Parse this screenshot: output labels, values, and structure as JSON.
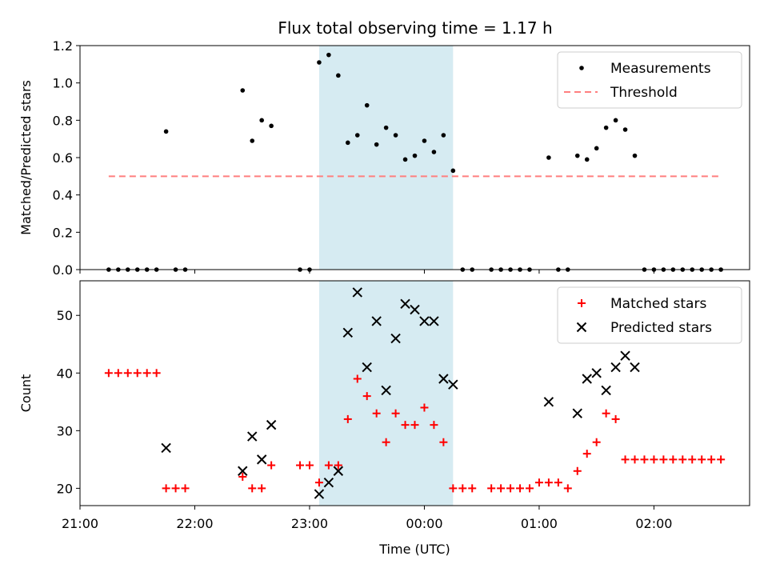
{
  "chart_data": {
    "title": "Flux total observing time = 1.17 h",
    "shaded_span": {
      "start": "23:05",
      "end": "00:15"
    },
    "panels": [
      {
        "type": "scatter",
        "ylabel": "Matched/Predicted stars",
        "ylim": [
          0,
          1.2
        ],
        "yticks": [
          "0.0",
          "0.2",
          "0.4",
          "0.6",
          "0.8",
          "1.0",
          "1.2"
        ],
        "xlim": [
          "21:00",
          "02:50"
        ],
        "legend_position": "top-right",
        "threshold": {
          "name": "Threshold",
          "value": 0.5,
          "x_start": "21:15",
          "x_end": "02:35",
          "color": "#ff7f7f"
        },
        "series": [
          {
            "name": "Measurements",
            "color": "#000000",
            "points": [
              [
                "21:15",
                0
              ],
              [
                "21:20",
                0
              ],
              [
                "21:25",
                0
              ],
              [
                "21:30",
                0
              ],
              [
                "21:35",
                0
              ],
              [
                "21:40",
                0
              ],
              [
                "21:45",
                0.74
              ],
              [
                "21:50",
                0
              ],
              [
                "21:55",
                0
              ],
              [
                "22:25",
                0.96
              ],
              [
                "22:30",
                0.69
              ],
              [
                "22:35",
                0.8
              ],
              [
                "22:40",
                0.77
              ],
              [
                "22:55",
                0
              ],
              [
                "23:00",
                0
              ],
              [
                "23:05",
                1.11
              ],
              [
                "23:10",
                1.15
              ],
              [
                "23:15",
                1.04
              ],
              [
                "23:20",
                0.68
              ],
              [
                "23:25",
                0.72
              ],
              [
                "23:30",
                0.88
              ],
              [
                "23:35",
                0.67
              ],
              [
                "23:40",
                0.76
              ],
              [
                "23:45",
                0.72
              ],
              [
                "23:50",
                0.59
              ],
              [
                "23:55",
                0.61
              ],
              [
                "00:00",
                0.69
              ],
              [
                "00:05",
                0.63
              ],
              [
                "00:10",
                0.72
              ],
              [
                "00:15",
                0.53
              ],
              [
                "00:20",
                0
              ],
              [
                "00:25",
                0
              ],
              [
                "00:35",
                0
              ],
              [
                "00:40",
                0
              ],
              [
                "00:45",
                0
              ],
              [
                "00:50",
                0
              ],
              [
                "00:55",
                0
              ],
              [
                "01:05",
                0.6
              ],
              [
                "01:10",
                0
              ],
              [
                "01:15",
                0
              ],
              [
                "01:20",
                0.61
              ],
              [
                "01:25",
                0.59
              ],
              [
                "01:30",
                0.65
              ],
              [
                "01:35",
                0.76
              ],
              [
                "01:40",
                0.8
              ],
              [
                "01:45",
                0.75
              ],
              [
                "01:50",
                0.61
              ],
              [
                "01:55",
                0
              ],
              [
                "02:00",
                0
              ],
              [
                "02:05",
                0
              ],
              [
                "02:10",
                0
              ],
              [
                "02:15",
                0
              ],
              [
                "02:20",
                0
              ],
              [
                "02:25",
                0
              ],
              [
                "02:30",
                0
              ],
              [
                "02:35",
                0
              ]
            ]
          }
        ]
      },
      {
        "type": "scatter",
        "xlabel": "Time (UTC)",
        "ylabel": "Count",
        "ylim": [
          17,
          56
        ],
        "yticks": [
          "20",
          "30",
          "40",
          "50"
        ],
        "xlim": [
          "21:00",
          "02:50"
        ],
        "xticks": [
          "21:00",
          "22:00",
          "23:00",
          "00:00",
          "01:00",
          "02:00"
        ],
        "legend_position": "top-right",
        "series": [
          {
            "name": "Matched stars",
            "marker": "plus",
            "color": "#ff0000",
            "points": [
              [
                "21:15",
                40
              ],
              [
                "21:20",
                40
              ],
              [
                "21:25",
                40
              ],
              [
                "21:30",
                40
              ],
              [
                "21:35",
                40
              ],
              [
                "21:40",
                40
              ],
              [
                "21:45",
                20
              ],
              [
                "21:50",
                20
              ],
              [
                "21:55",
                20
              ],
              [
                "22:25",
                22
              ],
              [
                "22:30",
                20
              ],
              [
                "22:35",
                20
              ],
              [
                "22:40",
                24
              ],
              [
                "22:55",
                24
              ],
              [
                "23:00",
                24
              ],
              [
                "23:05",
                21
              ],
              [
                "23:10",
                24
              ],
              [
                "23:15",
                24
              ],
              [
                "23:20",
                32
              ],
              [
                "23:25",
                39
              ],
              [
                "23:30",
                36
              ],
              [
                "23:35",
                33
              ],
              [
                "23:40",
                28
              ],
              [
                "23:45",
                33
              ],
              [
                "23:50",
                31
              ],
              [
                "23:55",
                31
              ],
              [
                "00:00",
                34
              ],
              [
                "00:05",
                31
              ],
              [
                "00:10",
                28
              ],
              [
                "00:15",
                20
              ],
              [
                "00:20",
                20
              ],
              [
                "00:25",
                20
              ],
              [
                "00:35",
                20
              ],
              [
                "00:40",
                20
              ],
              [
                "00:45",
                20
              ],
              [
                "00:50",
                20
              ],
              [
                "00:55",
                20
              ],
              [
                "01:00",
                21
              ],
              [
                "01:05",
                21
              ],
              [
                "01:10",
                21
              ],
              [
                "01:15",
                20
              ],
              [
                "01:20",
                23
              ],
              [
                "01:25",
                26
              ],
              [
                "01:30",
                28
              ],
              [
                "01:35",
                33
              ],
              [
                "01:40",
                32
              ],
              [
                "01:45",
                25
              ],
              [
                "01:50",
                25
              ],
              [
                "01:55",
                25
              ],
              [
                "02:00",
                25
              ],
              [
                "02:05",
                25
              ],
              [
                "02:10",
                25
              ],
              [
                "02:15",
                25
              ],
              [
                "02:20",
                25
              ],
              [
                "02:25",
                25
              ],
              [
                "02:30",
                25
              ],
              [
                "02:35",
                25
              ]
            ]
          },
          {
            "name": "Predicted stars",
            "marker": "x",
            "color": "#000000",
            "points": [
              [
                "21:45",
                27
              ],
              [
                "22:25",
                23
              ],
              [
                "22:30",
                29
              ],
              [
                "22:35",
                25
              ],
              [
                "22:40",
                31
              ],
              [
                "23:05",
                19
              ],
              [
                "23:10",
                21
              ],
              [
                "23:15",
                23
              ],
              [
                "23:20",
                47
              ],
              [
                "23:25",
                54
              ],
              [
                "23:30",
                41
              ],
              [
                "23:35",
                49
              ],
              [
                "23:40",
                37
              ],
              [
                "23:45",
                46
              ],
              [
                "23:50",
                52
              ],
              [
                "23:55",
                51
              ],
              [
                "00:00",
                49
              ],
              [
                "00:05",
                49
              ],
              [
                "00:10",
                39
              ],
              [
                "00:15",
                38
              ],
              [
                "01:05",
                35
              ],
              [
                "01:20",
                33
              ],
              [
                "01:25",
                39
              ],
              [
                "01:30",
                40
              ],
              [
                "01:35",
                37
              ],
              [
                "01:40",
                41
              ],
              [
                "01:45",
                43
              ],
              [
                "01:50",
                41
              ]
            ]
          }
        ]
      }
    ]
  }
}
